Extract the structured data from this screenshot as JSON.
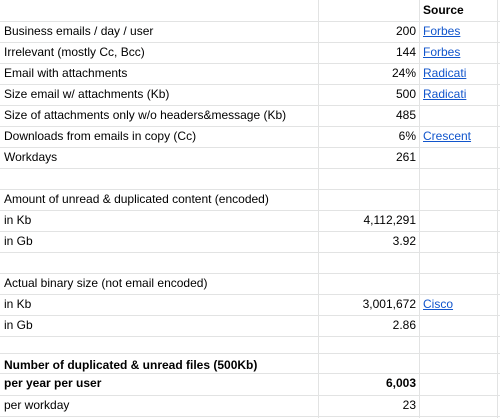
{
  "header": {
    "source": "Source"
  },
  "rows": [
    {
      "label": "Business emails / day / user",
      "value": "200",
      "source": "Forbes"
    },
    {
      "label": "Irrelevant (mostly Cc, Bcc)",
      "value": "144",
      "source": "Forbes"
    },
    {
      "label": "Email with attachments",
      "value": "24%",
      "source": "Radicati"
    },
    {
      "label": "Size email w/ attachments (Kb)",
      "value": "500",
      "source": "Radicati"
    },
    {
      "label": "Size of attachments only w/o headers&message (Kb)",
      "value": "485"
    },
    {
      "label": "Downloads from emails in copy (Cc)",
      "value": "6%",
      "source": "Crescent"
    },
    {
      "label": "Workdays",
      "value": "261"
    }
  ],
  "unread_section": {
    "title": "Amount of unread & duplicated content (encoded)",
    "kb_label": "in Kb",
    "kb_value": "4,112,291",
    "gb_label": "in Gb",
    "gb_value": "3.92"
  },
  "binary_section": {
    "title": "Actual binary size (not email encoded)",
    "kb_label": "in Kb",
    "kb_value": "3,001,672",
    "kb_source": "Cisco",
    "gb_label": "in Gb",
    "gb_value": "2.86"
  },
  "files_section": {
    "title_line1": "Number of duplicated & unread files (500Kb)",
    "title_line2": "per year per user",
    "year_value": "6,003",
    "workday_label": "per workday",
    "workday_value": "23"
  }
}
